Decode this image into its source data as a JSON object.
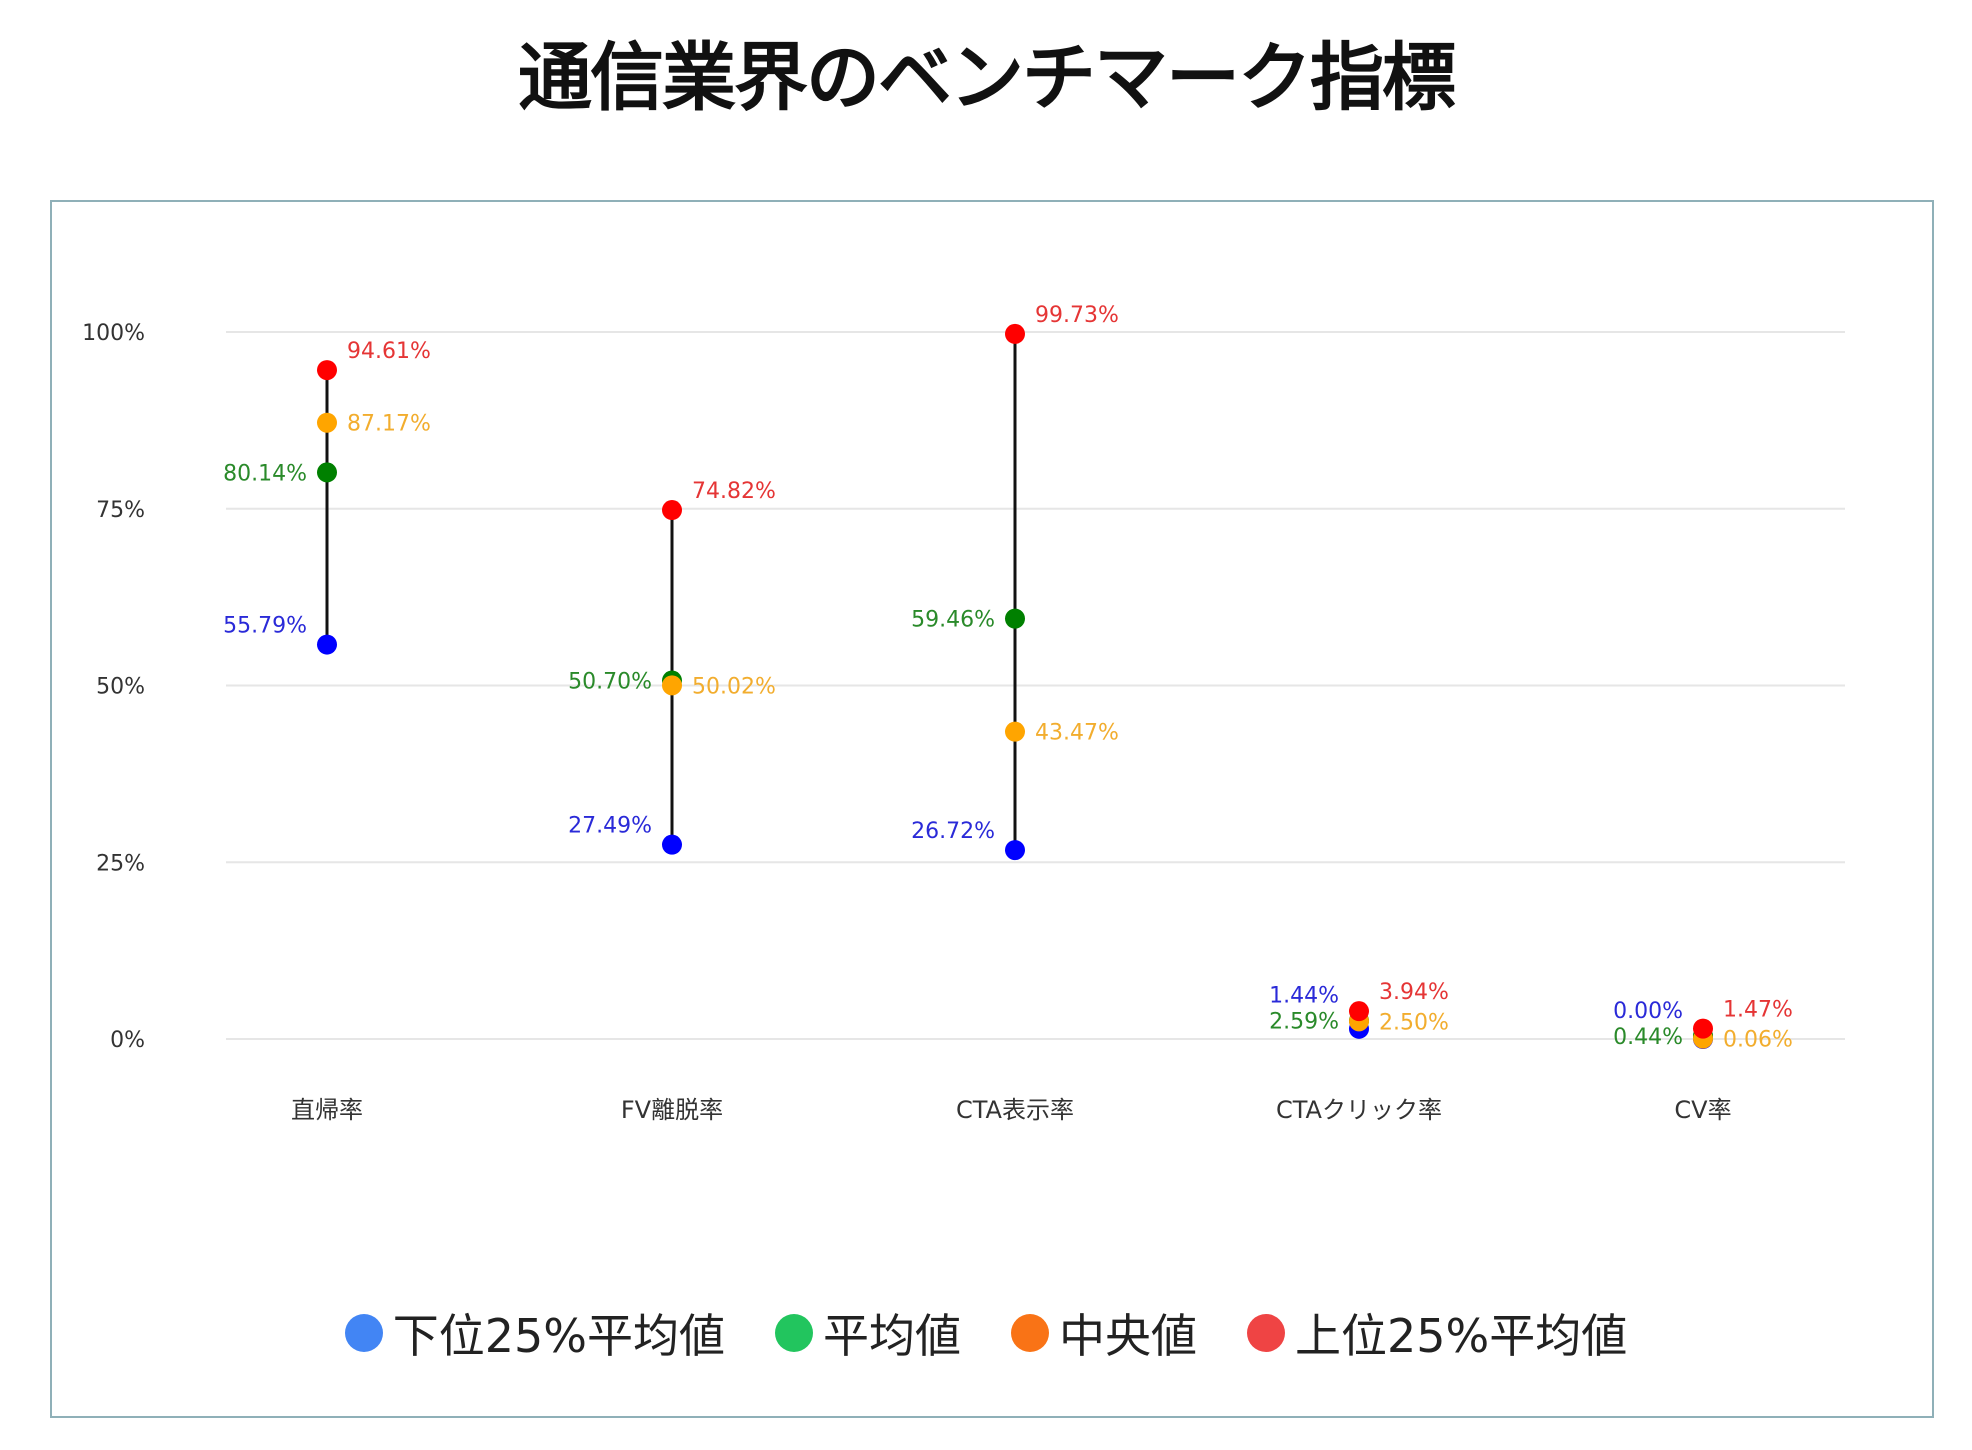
{
  "title": "通信業界のベンチマーク指標",
  "chart_data": {
    "type": "dot-range",
    "title": "通信業界のベンチマーク指標",
    "categories": [
      "直帰率",
      "FV離脱率",
      "CTA表示率",
      "CTAクリック率",
      "CV率"
    ],
    "ylim": [
      0,
      100
    ],
    "yticks": [
      "0%",
      "25%",
      "50%",
      "75%",
      "100%"
    ],
    "ytick_values": [
      0,
      25,
      50,
      75,
      100
    ],
    "grid": true,
    "legend_position": "bottom",
    "series": [
      {
        "name": "下位25%平均値",
        "values": [
          55.79,
          27.49,
          26.72,
          1.44,
          0.0
        ],
        "labels": [
          "55.79%",
          "27.49%",
          "26.72%",
          "1.44%",
          "0.00%"
        ],
        "dot_color": "#0000ff",
        "label_color": "#2a2ad8",
        "legend_color": "#4285f4",
        "label_side": "left-above"
      },
      {
        "name": "平均値",
        "values": [
          80.14,
          50.7,
          59.46,
          2.59,
          0.44
        ],
        "labels": [
          "80.14%",
          "50.70%",
          "59.46%",
          "2.59%",
          "0.44%"
        ],
        "dot_color": "#008000",
        "label_color": "#2a8a2a",
        "legend_color": "#22c55e",
        "label_side": "left"
      },
      {
        "name": "中央値",
        "values": [
          87.17,
          50.02,
          43.47,
          2.5,
          0.06
        ],
        "labels": [
          "87.17%",
          "50.02%",
          "43.47%",
          "2.50%",
          "0.06%"
        ],
        "dot_color": "#ffa500",
        "label_color": "#f2ad2e",
        "legend_color": "#f97316",
        "label_side": "right"
      },
      {
        "name": "上位25%平均値",
        "values": [
          94.61,
          74.82,
          99.73,
          3.94,
          1.47
        ],
        "labels": [
          "94.61%",
          "74.82%",
          "99.73%",
          "3.94%",
          "1.47%"
        ],
        "dot_color": "#ff0000",
        "label_color": "#e53535",
        "legend_color": "#ef4444",
        "label_side": "right-above"
      }
    ]
  }
}
